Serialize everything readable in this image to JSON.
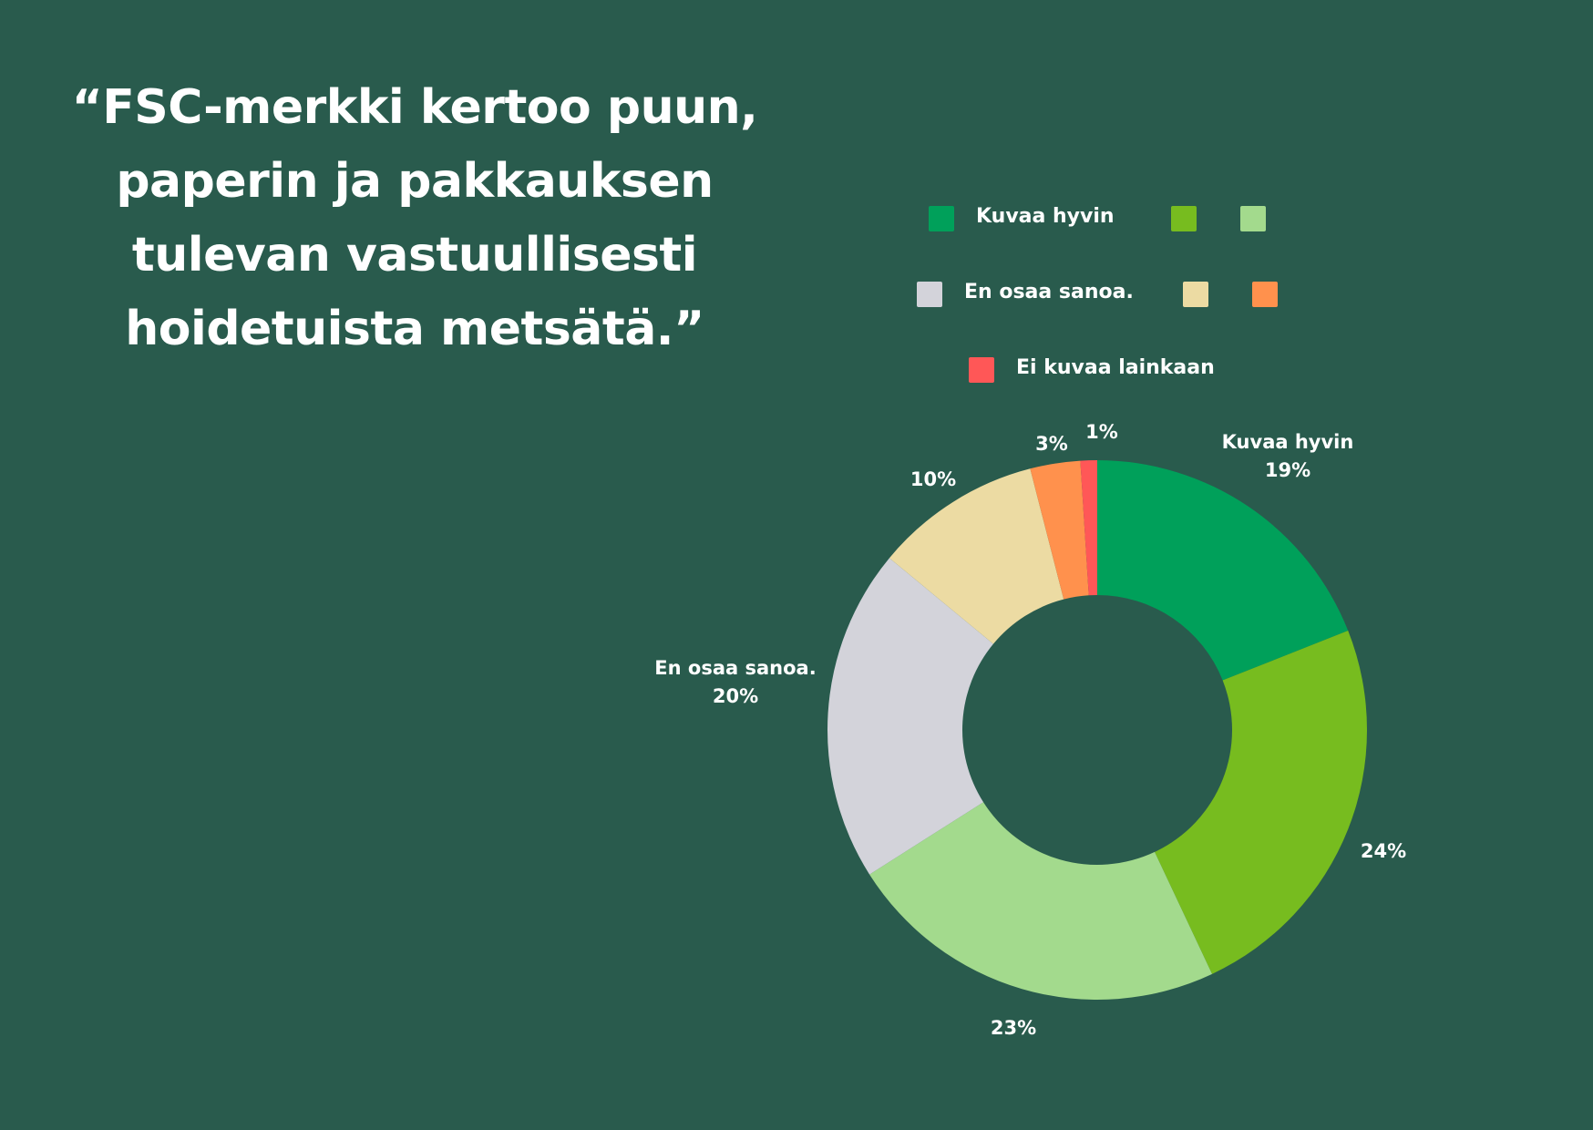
{
  "quote": {
    "lines": [
      "“FSC-merkki kertoo puun,",
      "paperin ja pakkauksen",
      "tulevan vastuullisesti",
      "hoidetuista metsätä.”"
    ]
  },
  "chart_data": {
    "type": "pie",
    "donut": true,
    "legend_position": "top",
    "series": [
      {
        "key": "s1",
        "name": "Kuvaa hyvin",
        "value": 19,
        "value_label": "19%",
        "color": "#00a05a"
      },
      {
        "key": "s2",
        "name": "",
        "value": 24,
        "value_label": "24%",
        "color": "#77bc1f"
      },
      {
        "key": "s3",
        "name": "",
        "value": 23,
        "value_label": "23%",
        "color": "#a3da8d"
      },
      {
        "key": "s4",
        "name": "En osaa sanoa.",
        "value": 20,
        "value_label": "20%",
        "color": "#d3d3da"
      },
      {
        "key": "s5",
        "name": "",
        "value": 10,
        "value_label": "10%",
        "color": "#ecdba3"
      },
      {
        "key": "s6",
        "name": "",
        "value": 3,
        "value_label": "3%",
        "color": "#ff914d"
      },
      {
        "key": "s7",
        "name": "Ei kuvaa lainkaan",
        "value": 1,
        "value_label": "1%",
        "color": "#ff5757"
      }
    ]
  }
}
